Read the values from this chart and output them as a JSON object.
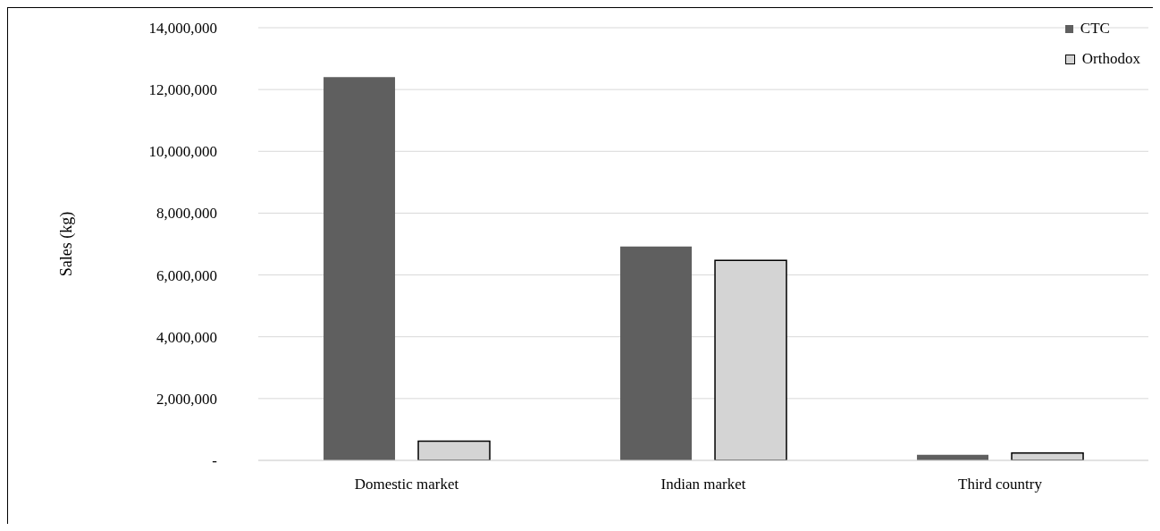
{
  "chart_data": {
    "type": "bar",
    "ylabel": "Sales (kg)",
    "categories": [
      "Domestic market",
      "Indian market",
      "Third country"
    ],
    "series": [
      {
        "name": "CTC",
        "color": "#5f5f5f",
        "values": [
          12400000,
          6920000,
          180000
        ]
      },
      {
        "name": "Orthodox",
        "color": "#d4d4d4",
        "values": [
          620000,
          6470000,
          240000
        ]
      }
    ],
    "ylim": [
      0,
      14000000
    ],
    "yticks": [
      {
        "value": 0,
        "label": "-"
      },
      {
        "value": 2000000,
        "label": "2,000,000"
      },
      {
        "value": 4000000,
        "label": "4,000,000"
      },
      {
        "value": 6000000,
        "label": "6,000,000"
      },
      {
        "value": 8000000,
        "label": "8,000,000"
      },
      {
        "value": 10000000,
        "label": "10,000,000"
      },
      {
        "value": 12000000,
        "label": "12,000,000"
      },
      {
        "value": 14000000,
        "label": "14,000,000"
      }
    ],
    "grid": "y",
    "legend": "top right"
  }
}
